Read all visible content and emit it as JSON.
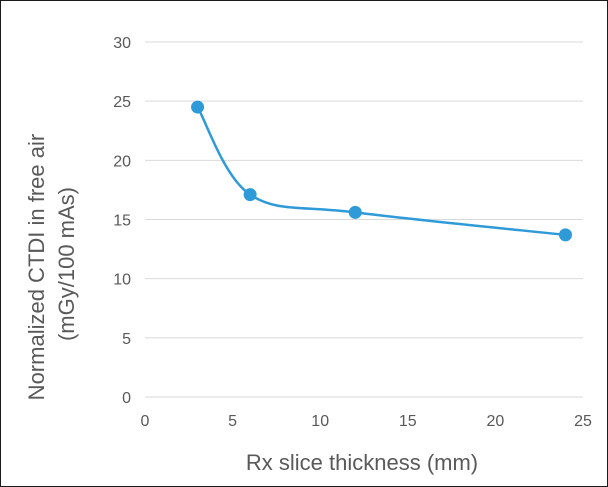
{
  "chart_data": {
    "type": "scatter",
    "title": "",
    "xlabel": "Rx slice thickness (mm)",
    "ylabel_lines": [
      "Normalized CTDI in free air",
      "(mGy/100 mAs)"
    ],
    "xlim": [
      0,
      25
    ],
    "ylim": [
      0,
      30
    ],
    "x_ticks": [
      0,
      5,
      10,
      15,
      20,
      25
    ],
    "y_ticks": [
      0,
      5,
      10,
      15,
      20,
      25,
      30
    ],
    "grid": "horizontal",
    "smoothed_line": true,
    "series": [
      {
        "x": [
          3,
          6,
          12,
          24
        ],
        "y": [
          24.5,
          17.1,
          15.6,
          13.7
        ],
        "color": "#2e9ad8"
      }
    ]
  }
}
